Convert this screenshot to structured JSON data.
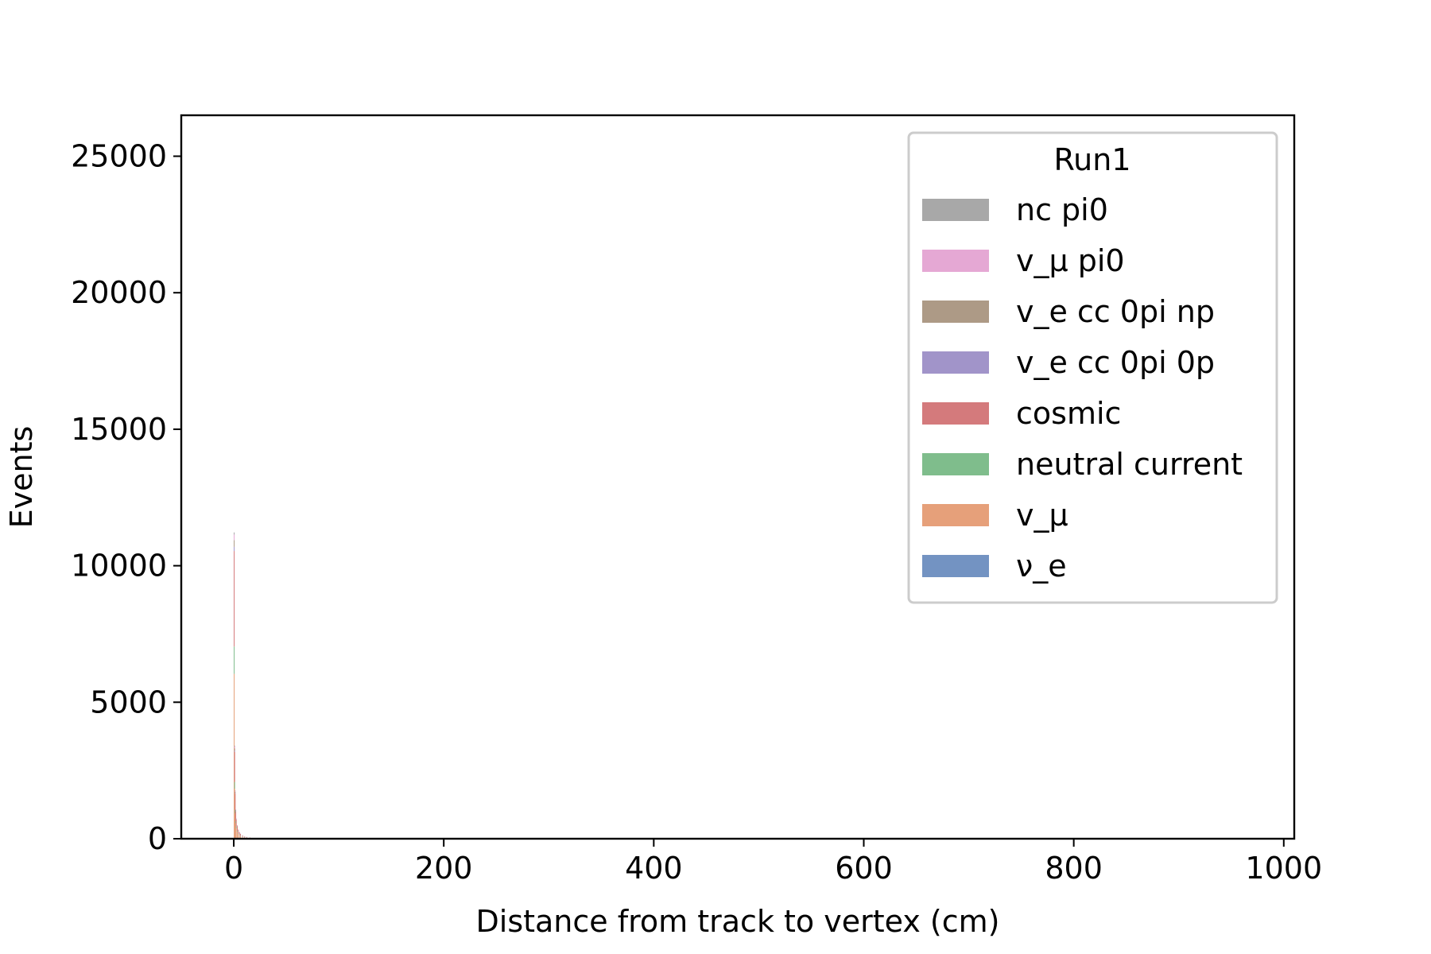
{
  "chart_data": {
    "type": "bar",
    "stacked": true,
    "xlabel": "Distance from track to vertex (cm)",
    "ylabel": "Events",
    "xlim": [
      -50,
      1010
    ],
    "ylim": [
      0,
      26500
    ],
    "xticks": [
      0,
      200,
      400,
      600,
      800,
      1000
    ],
    "yticks": [
      0,
      5000,
      10000,
      15000,
      20000,
      25000
    ],
    "grid": false,
    "legend": {
      "title": "Run1",
      "placement": "top-right"
    },
    "x": [
      0,
      0.5,
      1,
      1.5,
      2,
      3,
      4,
      5,
      6,
      8,
      10,
      12,
      15,
      20,
      25
    ],
    "bin_width": 0.5,
    "series": [
      {
        "name": "ν_e",
        "color": "#7393c2",
        "values": [
          40,
          30,
          25,
          18,
          12,
          8,
          5,
          4,
          3,
          2,
          1,
          1,
          1,
          0,
          0
        ]
      },
      {
        "name": "v_μ",
        "color": "#e6a07a",
        "values": [
          6000,
          1800,
          900,
          550,
          380,
          250,
          170,
          120,
          90,
          60,
          40,
          30,
          20,
          12,
          8
        ]
      },
      {
        "name": "neutral current",
        "color": "#7fbd8c",
        "values": [
          1000,
          250,
          130,
          80,
          55,
          35,
          25,
          18,
          12,
          8,
          6,
          4,
          3,
          2,
          1
        ]
      },
      {
        "name": "cosmic",
        "color": "#d47a7c",
        "values": [
          3500,
          1100,
          600,
          360,
          250,
          170,
          120,
          90,
          70,
          50,
          35,
          28,
          20,
          14,
          10
        ]
      },
      {
        "name": "v_e cc 0pi 0p",
        "color": "#a194c9",
        "values": [
          150,
          50,
          25,
          15,
          10,
          7,
          5,
          4,
          3,
          2,
          1,
          1,
          1,
          0,
          0
        ]
      },
      {
        "name": "v_e cc 0pi np",
        "color": "#ad9a86",
        "values": [
          250,
          80,
          40,
          25,
          15,
          10,
          7,
          5,
          4,
          3,
          2,
          1,
          1,
          1,
          0
        ]
      },
      {
        "name": "v_μ pi0",
        "color": "#e5a8d4",
        "values": [
          200,
          70,
          35,
          20,
          14,
          10,
          7,
          5,
          4,
          3,
          2,
          1,
          1,
          1,
          0
        ]
      },
      {
        "name": "nc pi0",
        "color": "#a8a8a8",
        "values": [
          80,
          30,
          15,
          9,
          6,
          4,
          3,
          2,
          2,
          1,
          1,
          1,
          0,
          0,
          0
        ]
      }
    ],
    "legend_order": [
      "nc pi0",
      "v_μ pi0",
      "v_e cc 0pi np",
      "v_e cc 0pi 0p",
      "cosmic",
      "neutral current",
      "v_μ",
      "ν_e"
    ]
  }
}
